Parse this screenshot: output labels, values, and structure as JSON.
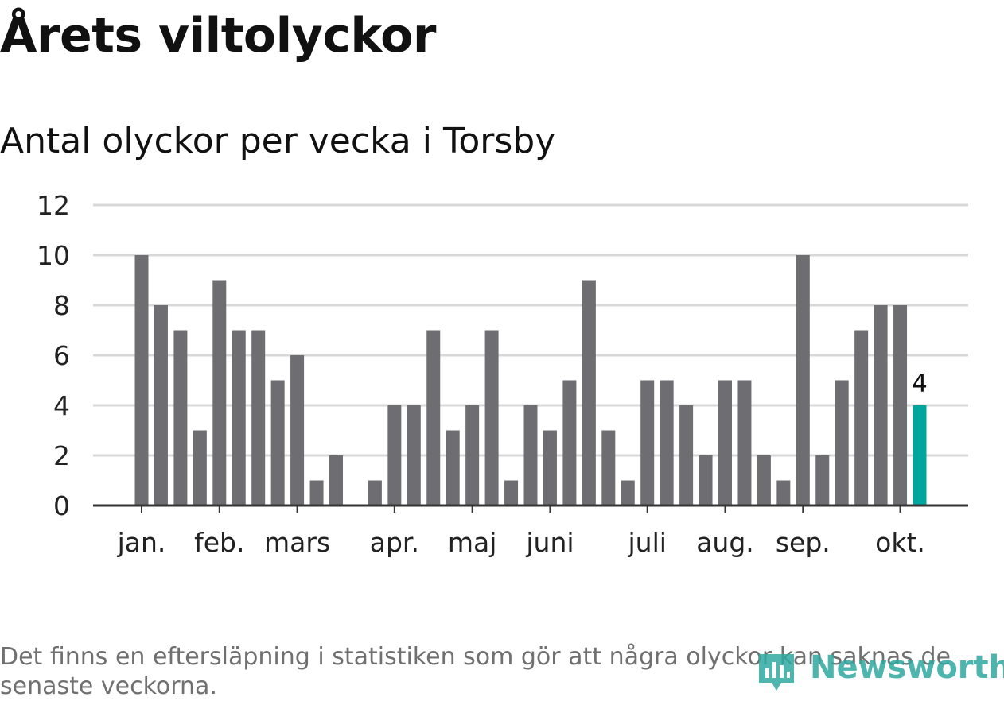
{
  "title": "Årets viltolyckor",
  "subtitle": "Antal olyckor per vecka i Torsby",
  "footnote": "Det finns en eftersläpning i statistiken som gör att några olyckor kan saknas de senaste veckorna.",
  "logo_text": "Newsworthy",
  "colors": {
    "bar": "#6e6d72",
    "highlight": "#00a59d",
    "grid": "#d8d8d8",
    "axis": "#333333",
    "text": "#111111",
    "footnote": "#707070"
  },
  "chart_data": {
    "type": "bar",
    "title": "Årets viltolyckor",
    "subtitle": "Antal olyckor per vecka i Torsby",
    "xlabel": "",
    "ylabel": "",
    "ylim": [
      0,
      12
    ],
    "yticks": [
      0,
      2,
      4,
      6,
      8,
      10,
      12
    ],
    "grid": true,
    "week_range": [
      1,
      42
    ],
    "values": [
      10,
      8,
      7,
      3,
      9,
      7,
      7,
      5,
      6,
      1,
      2,
      null,
      1,
      4,
      4,
      7,
      3,
      4,
      7,
      1,
      4,
      3,
      5,
      9,
      3,
      1,
      5,
      5,
      4,
      2,
      5,
      5,
      2,
      1,
      10,
      2,
      5,
      7,
      8,
      8,
      4
    ],
    "month_labels": [
      {
        "label": "jan.",
        "week": 1
      },
      {
        "label": "feb.",
        "week": 5
      },
      {
        "label": "mars",
        "week": 9
      },
      {
        "label": "apr.",
        "week": 14
      },
      {
        "label": "maj",
        "week": 18
      },
      {
        "label": "juni",
        "week": 22
      },
      {
        "label": "juli",
        "week": 27
      },
      {
        "label": "aug.",
        "week": 31
      },
      {
        "label": "sep.",
        "week": 35
      },
      {
        "label": "okt.",
        "week": 40
      }
    ],
    "highlight": {
      "index": 40,
      "label": "4"
    }
  }
}
